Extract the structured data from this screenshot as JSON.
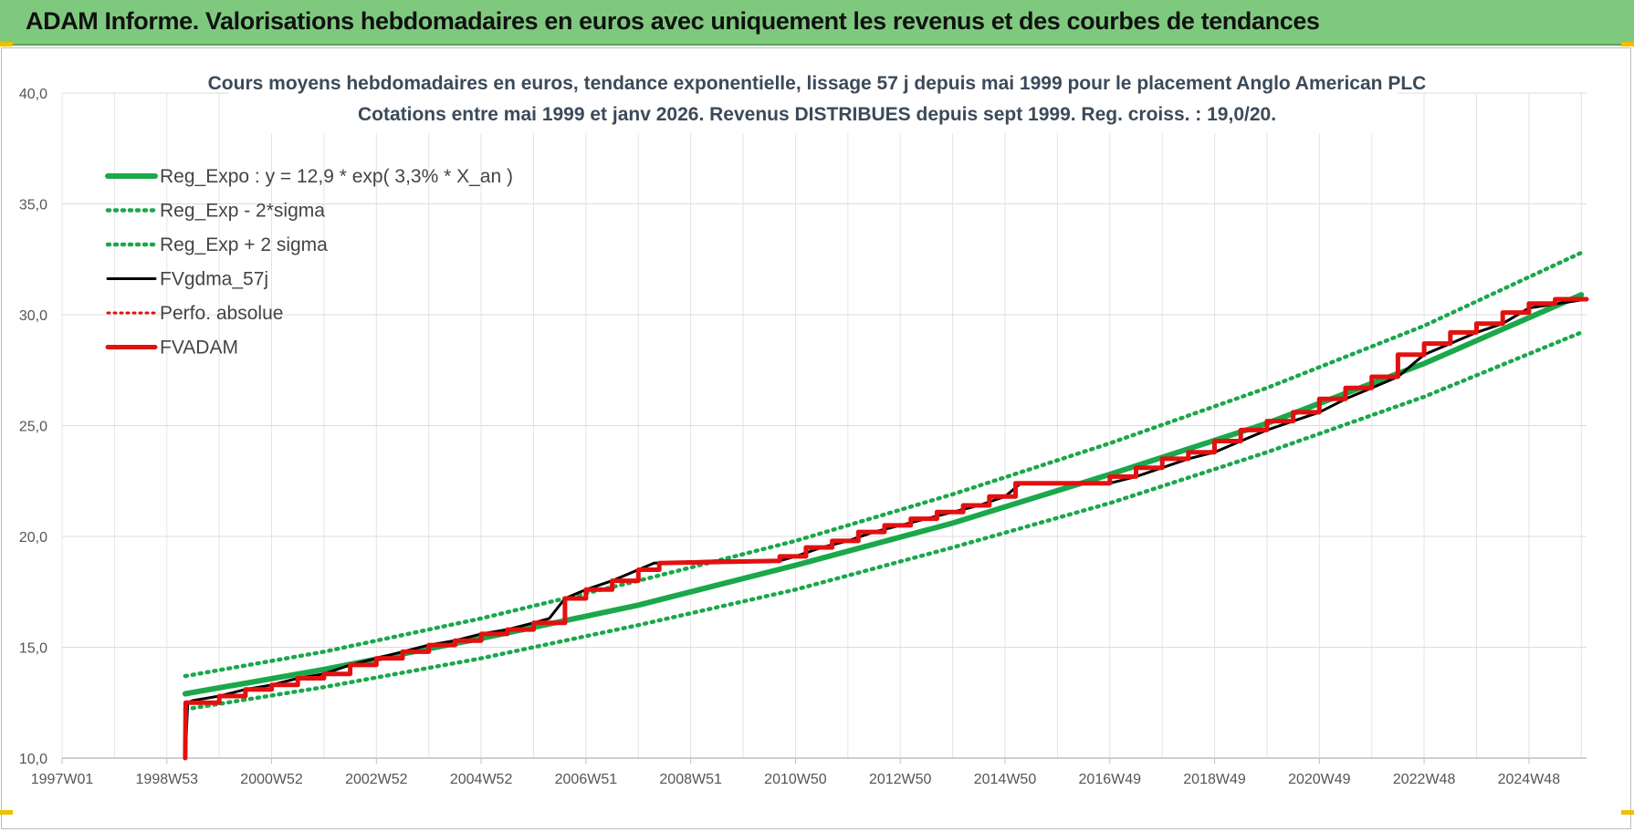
{
  "header": {
    "title": "ADAM Informe. Valorisations hebdomadaires en euros avec uniquement les revenus et des courbes de tendances"
  },
  "colors": {
    "header_bg": "#7fc97f",
    "reg_green": "#1aa84b",
    "adam_red": "#e31010",
    "gdma_black": "#000000"
  },
  "chart_data": {
    "type": "line",
    "title_lines": [
      "Cours moyens hebdomadaires en euros, tendance exponentielle, lissage 57 j depuis mai 1999 pour le placement Anglo American PLC",
      "Cotations entre mai 1999 et janv 2026. Revenus DISTRIBUES depuis sept 1999. Reg. croiss. : 19,0/20."
    ],
    "ylim": [
      10,
      40
    ],
    "y_ticks": [
      "10,0",
      "15,0",
      "20,0",
      "25,0",
      "30,0",
      "35,0",
      "40,0"
    ],
    "xlim": [
      1997.0,
      2026.1
    ],
    "x_tick_labels": [
      "1997W01",
      "1998W53",
      "2000W52",
      "2002W52",
      "2004W52",
      "2006W51",
      "2008W51",
      "2010W50",
      "2012W50",
      "2014W50",
      "2016W49",
      "2018W49",
      "2020W49",
      "2022W48",
      "2024W48"
    ],
    "x_tick_values": [
      1997.0,
      1999.0,
      2001.0,
      2003.0,
      2005.0,
      2007.0,
      2009.0,
      2011.0,
      2013.0,
      2015.0,
      2017.0,
      2019.0,
      2021.0,
      2023.0,
      2025.0
    ],
    "grid": true,
    "legend_position": "top-left",
    "legend": [
      {
        "label": "Reg_Expo : y = 12,9 * exp( 3,3% *  X_an )",
        "style": "solid-green"
      },
      {
        "label": "Reg_Exp - 2*sigma",
        "style": "dotted-green"
      },
      {
        "label": "Reg_Exp + 2 sigma",
        "style": "dotted-green"
      },
      {
        "label": "FVgdma_57j",
        "style": "solid-black"
      },
      {
        "label": "Perfo. absolue",
        "style": "dotted-red"
      },
      {
        "label": "FVADAM",
        "style": "solid-red"
      }
    ],
    "series": [
      {
        "name": "Reg_Expo : y = 12,9 * exp( 3,3% *  X_an )",
        "x": [
          1999.35,
          2002.0,
          2005.0,
          2008.0,
          2011.0,
          2014.0,
          2017.0,
          2020.0,
          2023.0,
          2026.0
        ],
        "values": [
          12.9,
          14.0,
          15.4,
          16.9,
          18.7,
          20.6,
          22.8,
          25.1,
          27.8,
          30.9
        ]
      },
      {
        "name": "Reg_Exp - 2*sigma",
        "x": [
          1999.35,
          2002.0,
          2005.0,
          2008.0,
          2011.0,
          2014.0,
          2017.0,
          2020.0,
          2023.0,
          2026.0
        ],
        "values": [
          12.2,
          13.2,
          14.5,
          16.0,
          17.6,
          19.5,
          21.5,
          23.8,
          26.3,
          29.2
        ]
      },
      {
        "name": "Reg_Exp + 2 sigma",
        "x": [
          1999.35,
          2002.0,
          2005.0,
          2008.0,
          2011.0,
          2014.0,
          2017.0,
          2020.0,
          2023.0,
          2026.0
        ],
        "values": [
          13.7,
          14.8,
          16.3,
          18.0,
          19.8,
          21.9,
          24.2,
          26.7,
          29.5,
          32.8
        ]
      },
      {
        "name": "FVgdma_57j",
        "x": [
          1999.35,
          1999.4,
          1999.5,
          2000.0,
          2000.5,
          2001.0,
          2001.5,
          2002.0,
          2002.5,
          2003.0,
          2003.5,
          2004.0,
          2004.5,
          2005.0,
          2005.5,
          2006.0,
          2006.3,
          2006.6,
          2007.0,
          2007.5,
          2008.0,
          2008.3,
          2009.5,
          2010.7,
          2011.0,
          2011.5,
          2012.0,
          2012.5,
          2013.0,
          2013.5,
          2014.0,
          2014.5,
          2015.0,
          2015.3,
          2017.0,
          2017.5,
          2018.0,
          2018.5,
          2019.0,
          2019.5,
          2020.0,
          2020.5,
          2021.0,
          2021.5,
          2022.0,
          2022.5,
          2023.0,
          2023.5,
          2024.0,
          2024.5,
          2025.0,
          2026.1
        ],
        "values": [
          10.0,
          12.5,
          12.6,
          12.8,
          13.1,
          13.3,
          13.6,
          13.8,
          14.2,
          14.5,
          14.8,
          15.1,
          15.3,
          15.6,
          15.8,
          16.1,
          16.3,
          17.2,
          17.6,
          18.0,
          18.5,
          18.8,
          18.9,
          18.9,
          19.1,
          19.5,
          19.8,
          20.2,
          20.5,
          20.8,
          21.1,
          21.4,
          21.8,
          22.4,
          22.4,
          22.7,
          23.1,
          23.5,
          23.8,
          24.3,
          24.8,
          25.2,
          25.6,
          26.2,
          26.7,
          27.2,
          28.2,
          28.7,
          29.2,
          29.6,
          30.3,
          30.7
        ]
      },
      {
        "name": "Perfo. absolue",
        "x": [],
        "values": []
      },
      {
        "name": "FVADAM",
        "x": [
          1999.35,
          1999.36,
          2000.0,
          2000.0,
          2000.5,
          2000.5,
          2001.0,
          2001.0,
          2001.5,
          2001.5,
          2002.0,
          2002.0,
          2002.5,
          2002.5,
          2003.0,
          2003.0,
          2003.5,
          2003.5,
          2004.0,
          2004.0,
          2004.5,
          2004.5,
          2005.0,
          2005.0,
          2005.5,
          2005.5,
          2006.0,
          2006.0,
          2006.6,
          2006.6,
          2007.0,
          2007.0,
          2007.5,
          2007.5,
          2008.0,
          2008.0,
          2008.4,
          2008.4,
          2010.7,
          2010.7,
          2011.2,
          2011.2,
          2011.7,
          2011.7,
          2012.2,
          2012.2,
          2012.7,
          2012.7,
          2013.2,
          2013.2,
          2013.7,
          2013.7,
          2014.2,
          2014.2,
          2014.7,
          2014.7,
          2015.2,
          2015.2,
          2017.0,
          2017.0,
          2017.5,
          2017.5,
          2018.0,
          2018.0,
          2018.5,
          2018.5,
          2019.0,
          2019.0,
          2019.5,
          2019.5,
          2020.0,
          2020.0,
          2020.5,
          2020.5,
          2021.0,
          2021.0,
          2021.5,
          2021.5,
          2022.0,
          2022.0,
          2022.5,
          2022.5,
          2023.0,
          2023.0,
          2023.5,
          2023.5,
          2024.0,
          2024.0,
          2024.5,
          2024.5,
          2025.0,
          2025.0,
          2025.5,
          2025.5,
          2026.1
        ],
        "values": [
          10.0,
          12.5,
          12.5,
          12.8,
          12.8,
          13.1,
          13.1,
          13.3,
          13.3,
          13.6,
          13.6,
          13.8,
          13.8,
          14.2,
          14.2,
          14.5,
          14.5,
          14.8,
          14.8,
          15.1,
          15.1,
          15.3,
          15.3,
          15.6,
          15.6,
          15.8,
          15.8,
          16.1,
          16.1,
          17.2,
          17.2,
          17.6,
          17.6,
          18.0,
          18.0,
          18.5,
          18.5,
          18.8,
          18.9,
          19.1,
          19.1,
          19.5,
          19.5,
          19.8,
          19.8,
          20.2,
          20.2,
          20.5,
          20.5,
          20.8,
          20.8,
          21.1,
          21.1,
          21.4,
          21.4,
          21.8,
          21.8,
          22.4,
          22.4,
          22.7,
          22.7,
          23.1,
          23.1,
          23.5,
          23.5,
          23.8,
          23.8,
          24.3,
          24.3,
          24.8,
          24.8,
          25.2,
          25.2,
          25.6,
          25.6,
          26.2,
          26.2,
          26.7,
          26.7,
          27.2,
          27.2,
          28.2,
          28.2,
          28.7,
          28.7,
          29.2,
          29.2,
          29.6,
          29.6,
          30.1,
          30.1,
          30.5,
          30.5,
          30.7,
          30.7
        ]
      }
    ]
  }
}
